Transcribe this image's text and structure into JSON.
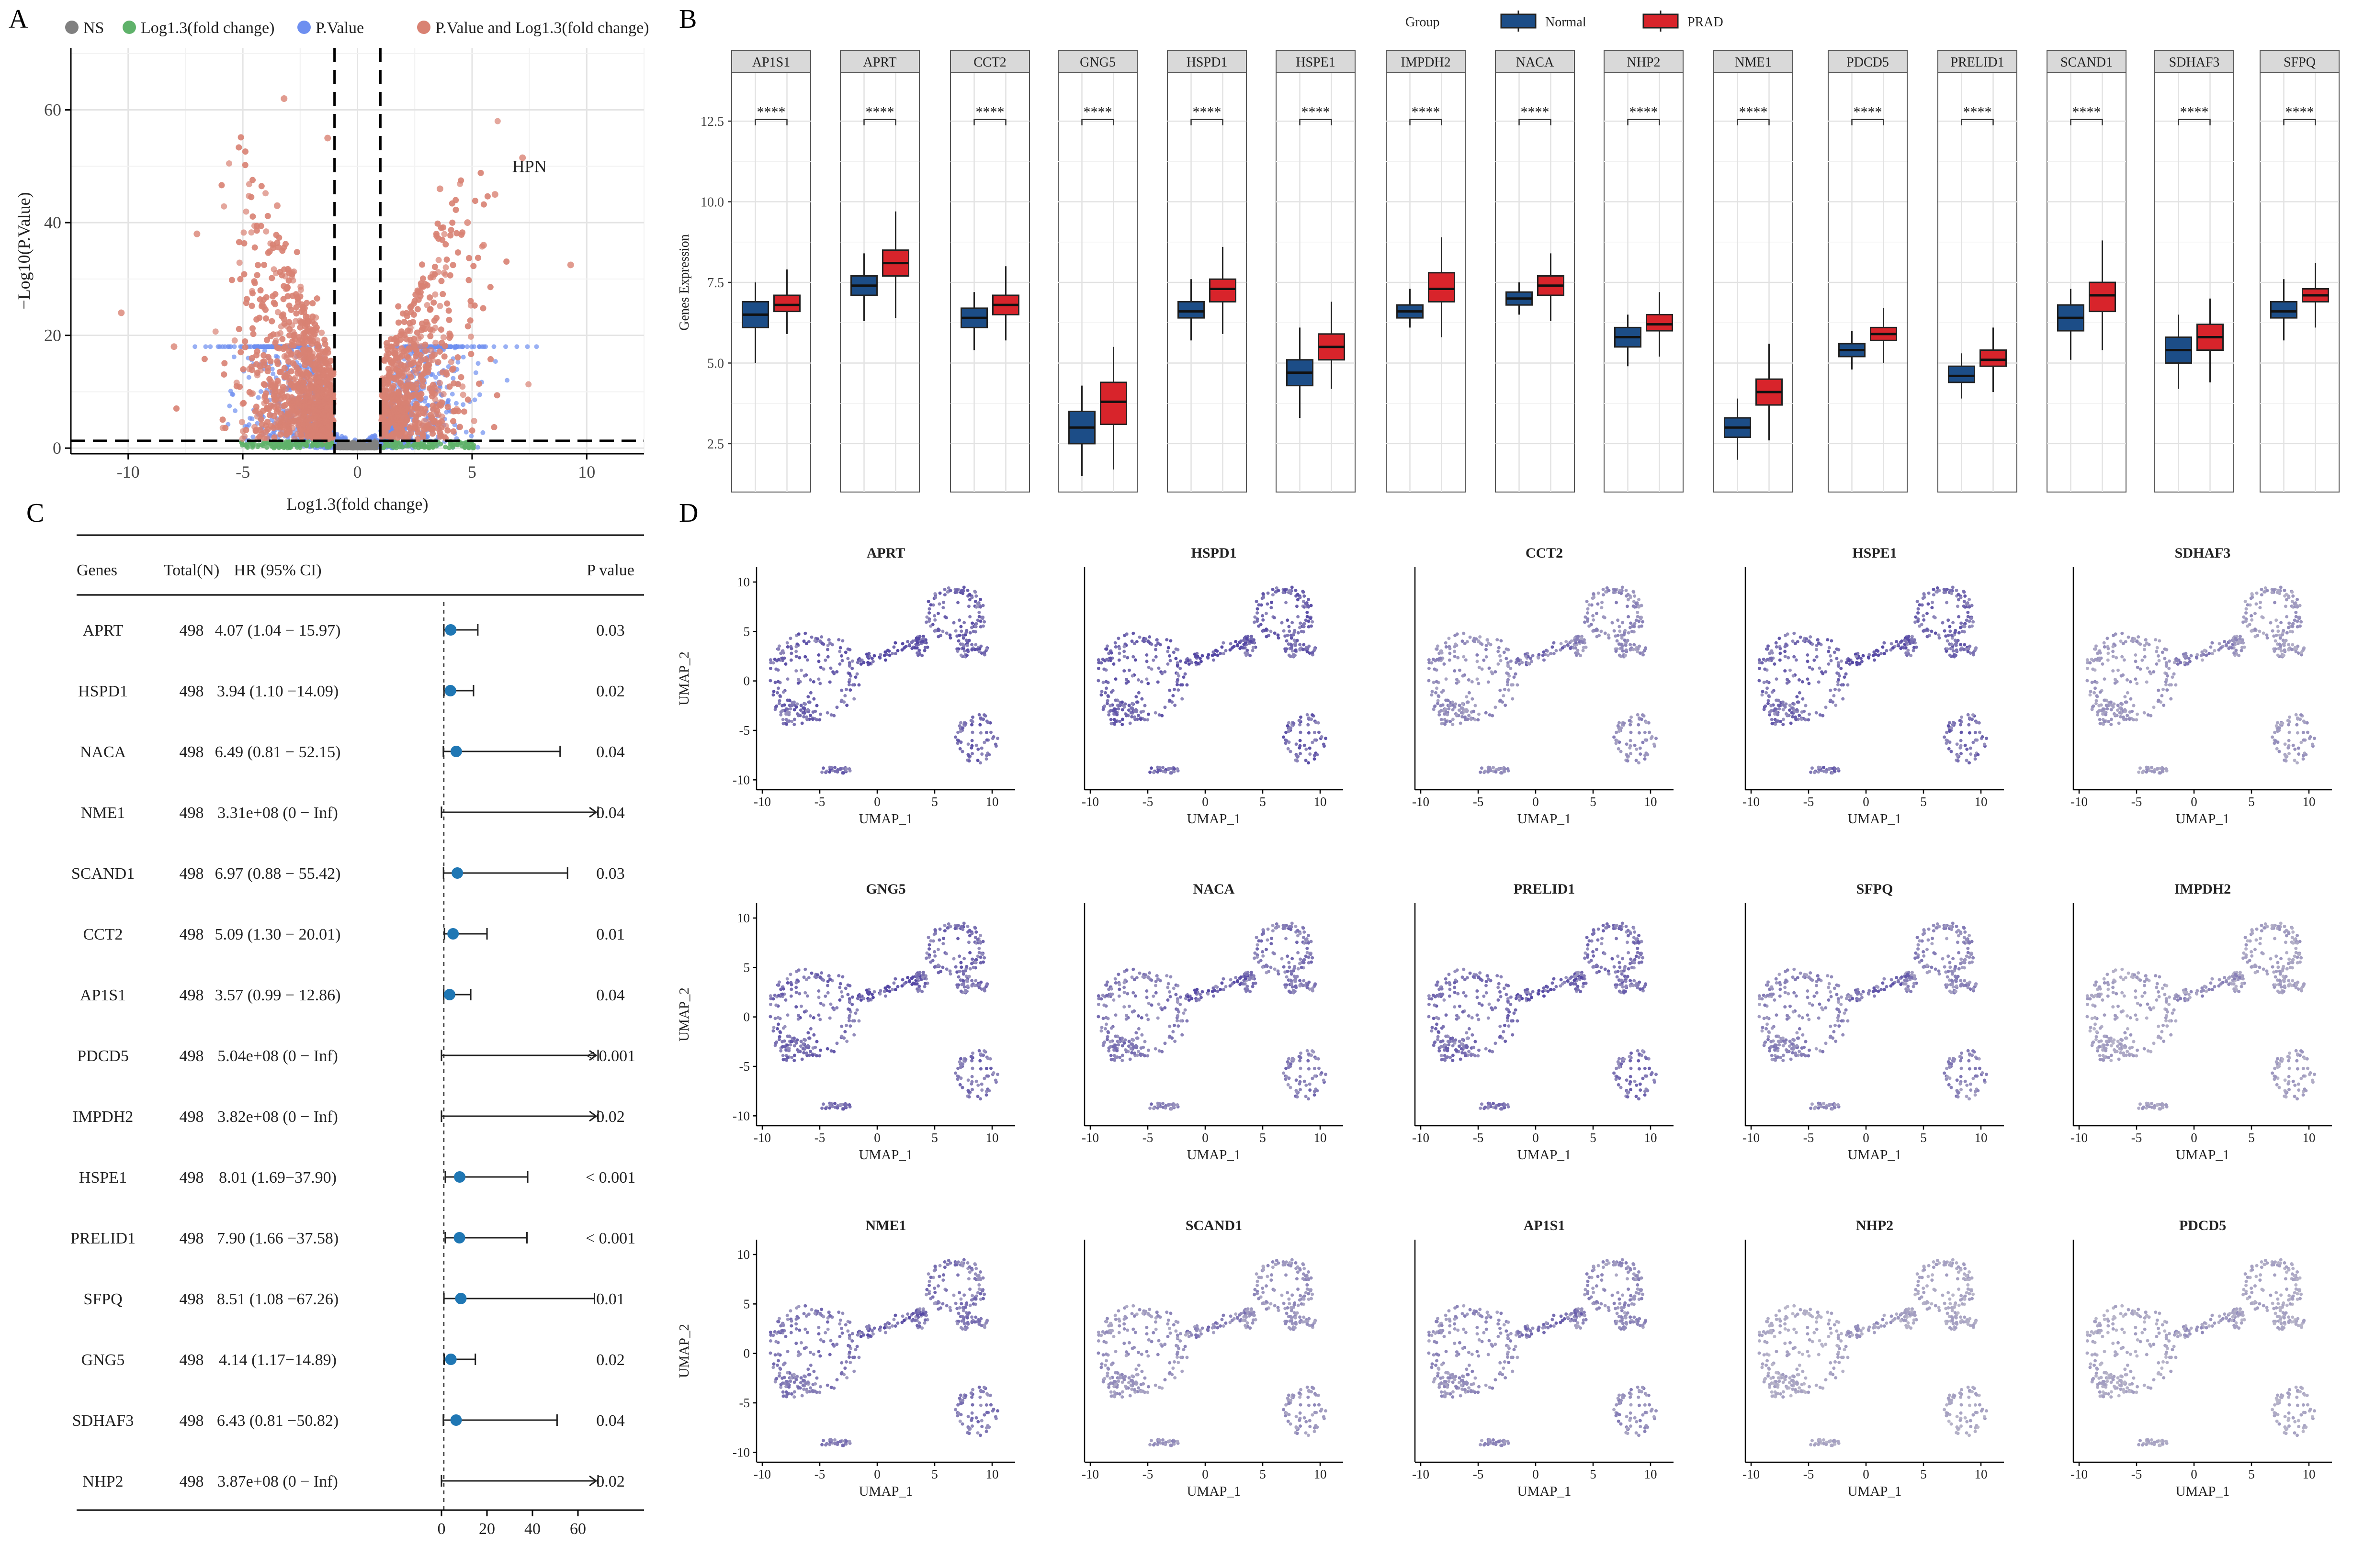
{
  "figure": {
    "panel_labels": [
      "A",
      "B",
      "C",
      "D"
    ]
  },
  "chart_data": [
    {
      "panel": "A",
      "type": "scatter",
      "title": "",
      "xlabel": "Log1.3(fold change)",
      "ylabel": "−Log10(P.Value)",
      "xlim": [
        -12.5,
        12.5
      ],
      "ylim": [
        -1,
        71
      ],
      "xticks": [
        -10,
        -5,
        0,
        5,
        10
      ],
      "yticks": [
        0,
        20,
        40,
        60
      ],
      "thresholds": {
        "x": [
          -1,
          1
        ],
        "y": 1.3
      },
      "legend": [
        {
          "label": "NS",
          "color": "#808080"
        },
        {
          "label": "Log1.3(fold change)",
          "color": "#5fb26a"
        },
        {
          "label": "P.Value",
          "color": "#6e8ff0"
        },
        {
          "label": "P.Value and Log1.3(fold change)",
          "color": "#d98273"
        }
      ],
      "annotation": {
        "text": "HPN",
        "x": 7.5,
        "y": 50
      },
      "outliers": [
        [
          -3.2,
          62
        ],
        [
          -1.3,
          55
        ],
        [
          7.2,
          51.5
        ],
        [
          -10.3,
          24
        ],
        [
          9.3,
          32.5
        ],
        [
          -8.0,
          18
        ],
        [
          6.0,
          45
        ],
        [
          -3.5,
          43
        ],
        [
          4.8,
          40
        ],
        [
          -7.0,
          38
        ],
        [
          3.6,
          46
        ],
        [
          5.5,
          36
        ]
      ]
    },
    {
      "panel": "B",
      "type": "box",
      "title": "",
      "xlabel": "",
      "ylabel": "Genes Expression",
      "ylim": [
        1.0,
        14.0
      ],
      "yticks": [
        2.5,
        5.0,
        7.5,
        10.0,
        12.5
      ],
      "ytick_labels": [
        "2.5",
        "5.0",
        "7.5",
        "10.0",
        "12.5"
      ],
      "legend_title": "Group",
      "groups": [
        {
          "name": "Normal",
          "color": "#1c4d87"
        },
        {
          "name": "PRAD",
          "color": "#d8242b"
        }
      ],
      "significance": "****",
      "genes": [
        {
          "name": "AP1S1",
          "normal": [
            5.0,
            6.1,
            6.5,
            6.9,
            7.5
          ],
          "prad": [
            5.9,
            6.6,
            6.8,
            7.1,
            7.9
          ]
        },
        {
          "name": "APRT",
          "normal": [
            6.3,
            7.1,
            7.4,
            7.7,
            8.4
          ],
          "prad": [
            6.4,
            7.7,
            8.1,
            8.5,
            9.7
          ]
        },
        {
          "name": "CCT2",
          "normal": [
            5.4,
            6.1,
            6.4,
            6.7,
            7.2
          ],
          "prad": [
            5.7,
            6.5,
            6.8,
            7.1,
            8.0
          ]
        },
        {
          "name": "GNG5",
          "normal": [
            1.5,
            2.5,
            3.0,
            3.5,
            4.3
          ],
          "prad": [
            1.7,
            3.1,
            3.8,
            4.4,
            5.5
          ]
        },
        {
          "name": "HSPD1",
          "normal": [
            5.7,
            6.4,
            6.6,
            6.9,
            7.6
          ],
          "prad": [
            5.9,
            6.9,
            7.3,
            7.6,
            8.6
          ]
        },
        {
          "name": "HSPE1",
          "normal": [
            3.3,
            4.3,
            4.7,
            5.1,
            6.1
          ],
          "prad": [
            4.2,
            5.1,
            5.5,
            5.9,
            6.9
          ]
        },
        {
          "name": "IMPDH2",
          "normal": [
            6.1,
            6.4,
            6.6,
            6.8,
            7.3
          ],
          "prad": [
            5.8,
            6.9,
            7.3,
            7.8,
            8.9
          ]
        },
        {
          "name": "NACA",
          "normal": [
            6.5,
            6.8,
            7.0,
            7.2,
            7.5
          ],
          "prad": [
            6.3,
            7.1,
            7.4,
            7.7,
            8.4
          ]
        },
        {
          "name": "NHP2",
          "normal": [
            4.9,
            5.5,
            5.8,
            6.1,
            6.5
          ],
          "prad": [
            5.2,
            6.0,
            6.2,
            6.5,
            7.2
          ]
        },
        {
          "name": "NME1",
          "normal": [
            2.0,
            2.7,
            3.0,
            3.3,
            3.9
          ],
          "prad": [
            2.6,
            3.7,
            4.1,
            4.5,
            5.6
          ]
        },
        {
          "name": "PDCD5",
          "normal": [
            4.8,
            5.2,
            5.4,
            5.6,
            6.0
          ],
          "prad": [
            5.0,
            5.7,
            5.9,
            6.1,
            6.7
          ]
        },
        {
          "name": "PRELID1",
          "normal": [
            3.9,
            4.4,
            4.6,
            4.9,
            5.3
          ],
          "prad": [
            4.1,
            4.9,
            5.1,
            5.4,
            6.1
          ]
        },
        {
          "name": "SCAND1",
          "normal": [
            5.1,
            6.0,
            6.4,
            6.8,
            7.3
          ],
          "prad": [
            5.4,
            6.6,
            7.1,
            7.5,
            8.8
          ]
        },
        {
          "name": "SDHAF3",
          "normal": [
            4.2,
            5.0,
            5.4,
            5.8,
            6.5
          ],
          "prad": [
            4.4,
            5.4,
            5.8,
            6.2,
            7.0
          ]
        },
        {
          "name": "SFPQ",
          "normal": [
            5.7,
            6.4,
            6.6,
            6.9,
            7.6
          ],
          "prad": [
            6.1,
            6.9,
            7.1,
            7.3,
            8.1
          ]
        }
      ]
    },
    {
      "panel": "C",
      "type": "forest",
      "headers": {
        "gene": "Genes",
        "n": "Total(N)",
        "hr": "HR (95% CI)",
        "p": "P value"
      },
      "xaxis_ticks": [
        0,
        20,
        40,
        60
      ],
      "xlim": [
        0,
        68
      ],
      "reference_line": 1,
      "marker_color": "#1f77b4",
      "rows": [
        {
          "gene": "APRT",
          "n": "498",
          "hr_text": "4.07 (1.04 − 15.97)",
          "p": "0.03",
          "hr": 4.07,
          "low": 1.04,
          "high": 15.97
        },
        {
          "gene": "HSPD1",
          "n": "498",
          "hr_text": "3.94 (1.10 −14.09)",
          "p": "0.02",
          "hr": 3.94,
          "low": 1.1,
          "high": 14.09
        },
        {
          "gene": "NACA",
          "n": "498",
          "hr_text": "6.49 (0.81 − 52.15)",
          "p": "0.04",
          "hr": 6.49,
          "low": 0.81,
          "high": 52.15
        },
        {
          "gene": "NME1",
          "n": "498",
          "hr_text": "3.31e+08 (0 − Inf)",
          "p": "0.04",
          "hr": 331000000,
          "low": 0,
          "high": "Inf"
        },
        {
          "gene": "SCAND1",
          "n": "498",
          "hr_text": "6.97 (0.88 − 55.42)",
          "p": "0.03",
          "hr": 6.97,
          "low": 0.88,
          "high": 55.42
        },
        {
          "gene": "CCT2",
          "n": "498",
          "hr_text": "5.09 (1.30 − 20.01)",
          "p": "0.01",
          "hr": 5.09,
          "low": 1.3,
          "high": 20.01
        },
        {
          "gene": "AP1S1",
          "n": "498",
          "hr_text": "3.57 (0.99 − 12.86)",
          "p": "0.04",
          "hr": 3.57,
          "low": 0.99,
          "high": 12.86
        },
        {
          "gene": "PDCD5",
          "n": "498",
          "hr_text": "5.04e+08 (0 − Inf)",
          "p": "< 0.001",
          "hr": 504000000,
          "low": 0,
          "high": "Inf"
        },
        {
          "gene": "IMPDH2",
          "n": "498",
          "hr_text": "3.82e+08 (0 − Inf)",
          "p": "0.02",
          "hr": 382000000,
          "low": 0,
          "high": "Inf"
        },
        {
          "gene": "HSPE1",
          "n": "498",
          "hr_text": "8.01 (1.69−37.90)",
          "p": "< 0.001",
          "hr": 8.01,
          "low": 1.69,
          "high": 37.9
        },
        {
          "gene": "PRELID1",
          "n": "498",
          "hr_text": "7.90 (1.66 −37.58)",
          "p": "< 0.001",
          "hr": 7.9,
          "low": 1.66,
          "high": 37.58
        },
        {
          "gene": "SFPQ",
          "n": "498",
          "hr_text": "8.51 (1.08 −67.26)",
          "p": "0.01",
          "hr": 8.51,
          "low": 1.08,
          "high": 67.26
        },
        {
          "gene": "GNG5",
          "n": "498",
          "hr_text": "4.14 (1.17−14.89)",
          "p": "0.02",
          "hr": 4.14,
          "low": 1.17,
          "high": 14.89
        },
        {
          "gene": "SDHAF3",
          "n": "498",
          "hr_text": "6.43 (0.81 −50.82)",
          "p": "0.04",
          "hr": 6.43,
          "low": 0.81,
          "high": 50.82
        },
        {
          "gene": "NHP2",
          "n": "498",
          "hr_text": "3.87e+08 (0 − Inf)",
          "p": "0.02",
          "hr": 387000000,
          "low": 0,
          "high": "Inf"
        }
      ]
    },
    {
      "panel": "D",
      "type": "scatter",
      "subtype": "umap_feature_plots",
      "xlabel": "UMAP_1",
      "ylabel": "UMAP_2",
      "xlim": [
        -10.5,
        12
      ],
      "ylim": [
        -11,
        11.5
      ],
      "xticks": [
        -10,
        -5,
        0,
        5,
        10
      ],
      "yticks": [
        -10,
        -5,
        0,
        5,
        10
      ],
      "low_color": "#d3d3d3",
      "high_color": "#5548a5",
      "plots": [
        {
          "gene": "APRT",
          "level": 0.85
        },
        {
          "gene": "HSPD1",
          "level": 0.85
        },
        {
          "gene": "CCT2",
          "level": 0.55
        },
        {
          "gene": "HSPE1",
          "level": 0.8
        },
        {
          "gene": "SDHAF3",
          "level": 0.45
        },
        {
          "gene": "GNG5",
          "level": 0.8
        },
        {
          "gene": "NACA",
          "level": 0.7
        },
        {
          "gene": "PRELID1",
          "level": 0.75
        },
        {
          "gene": "SFPQ",
          "level": 0.6
        },
        {
          "gene": "IMPDH2",
          "level": 0.4
        },
        {
          "gene": "NME1",
          "level": 0.7
        },
        {
          "gene": "SCAND1",
          "level": 0.5
        },
        {
          "gene": "AP1S1",
          "level": 0.55
        },
        {
          "gene": "NHP2",
          "level": 0.35
        },
        {
          "gene": "PDCD5",
          "level": 0.35
        }
      ]
    }
  ]
}
